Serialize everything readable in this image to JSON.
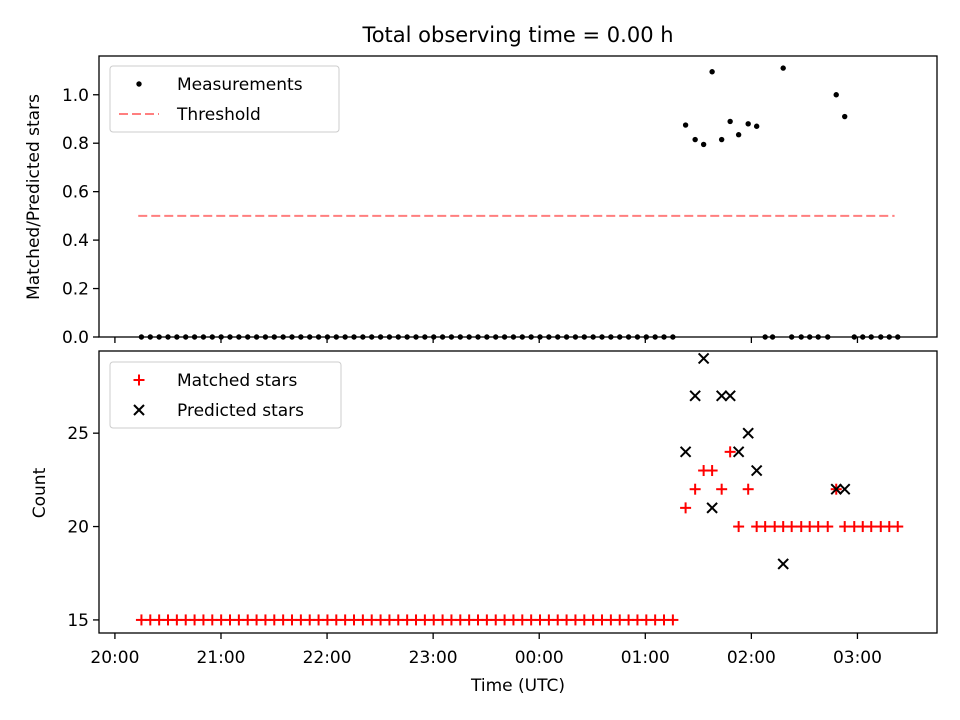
{
  "chart_data": {
    "type": "scatter",
    "title": "Total observing time = 0.00 h",
    "xlabel": "Time (UTC)",
    "x_ticks": [
      "20:00",
      "21:00",
      "22:00",
      "23:00",
      "00:00",
      "01:00",
      "02:00",
      "03:00"
    ],
    "x_range_hours": [
      19.85,
      27.75
    ],
    "x_tick_hours": [
      20,
      21,
      22,
      23,
      24,
      25,
      26,
      27
    ],
    "panels": [
      {
        "ylabel": "Matched/Predicted stars",
        "ylim": [
          0,
          1.16
        ],
        "y_ticks": [
          "0.0",
          "0.2",
          "0.4",
          "0.6",
          "0.8",
          "1.0"
        ],
        "y_tick_values": [
          0,
          0.2,
          0.4,
          0.6,
          0.8,
          1.0
        ],
        "legend": [
          "Measurements",
          "Threshold"
        ],
        "legend_position": "top-left",
        "threshold": {
          "name": "Threshold",
          "value": 0.5,
          "x": [
            20.22,
            27.35
          ],
          "color": "#ff7f7f"
        },
        "series": [
          {
            "name": "Measurements",
            "color": "#000000",
            "zero_x_start": 20.25,
            "zero_x_end": 25.32,
            "zero_step": 0.0835,
            "points": [
              [
                25.38,
                0.875
              ],
              [
                25.47,
                0.815
              ],
              [
                25.55,
                0.795
              ],
              [
                25.63,
                1.095
              ],
              [
                25.72,
                0.815
              ],
              [
                25.8,
                0.89
              ],
              [
                25.88,
                0.835
              ],
              [
                25.97,
                0.88
              ],
              [
                26.05,
                0.87
              ],
              [
                26.3,
                1.11
              ],
              [
                26.8,
                1.0
              ],
              [
                26.88,
                0.91
              ],
              [
                26.13,
                0
              ],
              [
                26.2,
                0
              ],
              [
                26.38,
                0
              ],
              [
                26.47,
                0
              ],
              [
                26.55,
                0
              ],
              [
                26.63,
                0
              ],
              [
                26.72,
                0
              ],
              [
                26.97,
                0
              ],
              [
                27.05,
                0
              ],
              [
                27.13,
                0
              ],
              [
                27.22,
                0
              ],
              [
                27.3,
                0
              ],
              [
                27.38,
                0
              ]
            ]
          }
        ]
      },
      {
        "ylabel": "Count",
        "ylim": [
          14.3,
          29.4
        ],
        "y_ticks": [
          "15",
          "20",
          "25"
        ],
        "y_tick_values": [
          15,
          20,
          25
        ],
        "legend": [
          "Matched stars",
          "Predicted stars"
        ],
        "legend_position": "top-left",
        "series": [
          {
            "name": "Matched stars",
            "color": "#ff0000",
            "marker": "plus",
            "const_value": 15,
            "const_x_start": 20.25,
            "const_x_end": 25.32,
            "const_step": 0.0835,
            "points": [
              [
                25.38,
                21
              ],
              [
                25.47,
                22
              ],
              [
                25.55,
                23
              ],
              [
                25.63,
                23
              ],
              [
                25.72,
                22
              ],
              [
                25.8,
                24
              ],
              [
                25.88,
                20
              ],
              [
                25.97,
                22
              ],
              [
                26.05,
                20
              ],
              [
                26.13,
                20
              ],
              [
                26.22,
                20
              ],
              [
                26.3,
                20
              ],
              [
                26.38,
                20
              ],
              [
                26.47,
                20
              ],
              [
                26.55,
                20
              ],
              [
                26.63,
                20
              ],
              [
                26.72,
                20
              ],
              [
                26.8,
                22
              ],
              [
                26.88,
                20
              ],
              [
                26.97,
                20
              ],
              [
                27.05,
                20
              ],
              [
                27.13,
                20
              ],
              [
                27.22,
                20
              ],
              [
                27.3,
                20
              ],
              [
                27.38,
                20
              ]
            ]
          },
          {
            "name": "Predicted stars",
            "color": "#000000",
            "marker": "x",
            "points": [
              [
                25.38,
                24
              ],
              [
                25.47,
                27
              ],
              [
                25.55,
                29
              ],
              [
                25.63,
                21
              ],
              [
                25.72,
                27
              ],
              [
                25.8,
                27
              ],
              [
                25.88,
                24
              ],
              [
                25.97,
                25
              ],
              [
                26.05,
                23
              ],
              [
                26.3,
                18
              ],
              [
                26.8,
                22
              ],
              [
                26.88,
                22
              ]
            ]
          }
        ]
      }
    ]
  }
}
